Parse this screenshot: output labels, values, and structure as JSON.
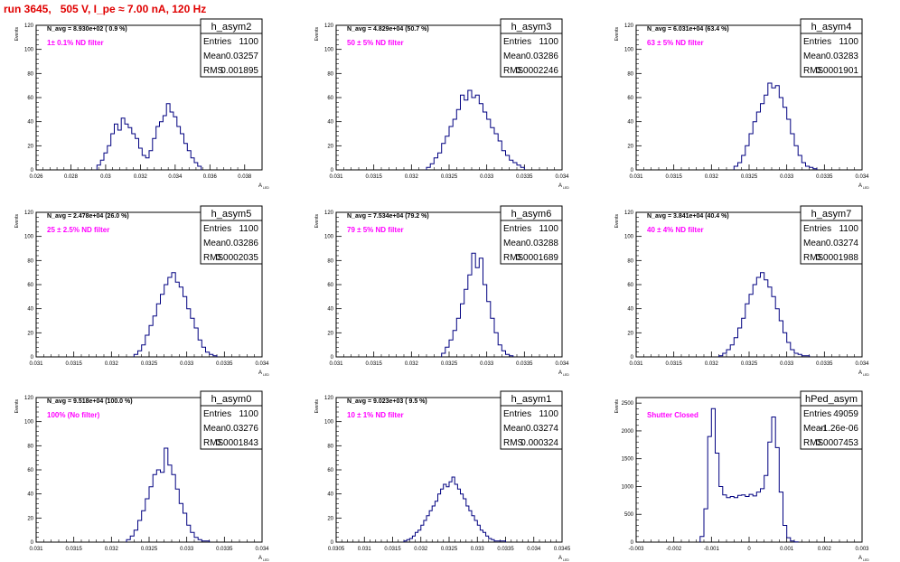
{
  "title": "run 3645,   505 V, I_pe ≈ 7.00 nA, 120 Hz",
  "colors": {
    "histogram": "#000080",
    "title": "#e00000",
    "annotation": "#ff00ff"
  },
  "chart_data": [
    {
      "type": "bar",
      "name": "h_asym2",
      "stats": {
        "entries": "1100",
        "mean": "0.03257",
        "rms": "0.001895"
      },
      "n_avg_text": "N_avg = 8.930e+02 ( 0.9 %)",
      "filter_text": "1± 0.1% ND filter",
      "ylabel": "Events",
      "xlabel": "A_LED",
      "xlim": [
        0.026,
        0.039
      ],
      "ylim": [
        0,
        120
      ],
      "xticks": [
        0.026,
        0.028,
        0.03,
        0.032,
        0.034,
        0.036,
        0.038
      ],
      "xtick_labels": [
        "0.026",
        "0.028",
        "0.03",
        "0.032",
        "0.034",
        "0.036",
        "0.038"
      ],
      "yticks": [
        0,
        20,
        40,
        60,
        80,
        100,
        120
      ],
      "bin_edges": [
        0.0295,
        0.0297,
        0.0299,
        0.0301,
        0.0303,
        0.0305,
        0.0307,
        0.0309,
        0.0311,
        0.0313,
        0.0315,
        0.0317,
        0.0319,
        0.0321,
        0.0323,
        0.0325,
        0.0327,
        0.0329,
        0.0331,
        0.0333,
        0.0335,
        0.0337,
        0.0339,
        0.0341,
        0.0343,
        0.0345,
        0.0347,
        0.0349,
        0.0351,
        0.0353,
        0.0355
      ],
      "values": [
        4,
        8,
        14,
        20,
        30,
        38,
        33,
        43,
        38,
        35,
        30,
        26,
        18,
        12,
        10,
        16,
        26,
        36,
        40,
        45,
        55,
        48,
        44,
        36,
        30,
        22,
        16,
        10,
        6,
        3
      ]
    },
    {
      "type": "bar",
      "name": "h_asym3",
      "stats": {
        "entries": "1100",
        "mean": "0.03286",
        "rms": "0.0002246"
      },
      "n_avg_text": "N_avg = 4.829e+04 (50.7 %)",
      "filter_text": "50 ± 5% ND filter",
      "ylabel": "Events",
      "xlabel": "A_LED",
      "xlim": [
        0.031,
        0.034
      ],
      "ylim": [
        0,
        120
      ],
      "xticks": [
        0.031,
        0.0315,
        0.032,
        0.0325,
        0.033,
        0.0335,
        0.034
      ],
      "xtick_labels": [
        "0.031",
        "0.0315",
        "0.032",
        "0.0325",
        "0.033",
        "0.0335",
        "0.034"
      ],
      "yticks": [
        0,
        20,
        40,
        60,
        80,
        100,
        120
      ],
      "bin_edges": [
        0.0322,
        0.03225,
        0.0323,
        0.03235,
        0.0324,
        0.03245,
        0.0325,
        0.03255,
        0.0326,
        0.03265,
        0.0327,
        0.03275,
        0.0328,
        0.03285,
        0.0329,
        0.03295,
        0.033,
        0.03305,
        0.0331,
        0.03315,
        0.0332,
        0.03325,
        0.0333,
        0.03335,
        0.0334,
        0.03345,
        0.0335
      ],
      "values": [
        2,
        5,
        10,
        14,
        22,
        28,
        36,
        42,
        50,
        62,
        58,
        66,
        60,
        62,
        55,
        48,
        42,
        35,
        30,
        24,
        16,
        12,
        8,
        6,
        4,
        2
      ]
    },
    {
      "type": "bar",
      "name": "h_asym4",
      "stats": {
        "entries": "1100",
        "mean": "0.03283",
        "rms": "0.0001901"
      },
      "n_avg_text": "N_avg = 6.031e+04 (63.4 %)",
      "filter_text": "63 ± 5% ND filter",
      "ylabel": "Events",
      "xlabel": "A_LED",
      "xlim": [
        0.031,
        0.034
      ],
      "ylim": [
        0,
        120
      ],
      "xticks": [
        0.031,
        0.0315,
        0.032,
        0.0325,
        0.033,
        0.0335,
        0.034
      ],
      "xtick_labels": [
        "0.031",
        "0.0315",
        "0.032",
        "0.0325",
        "0.033",
        "0.0335",
        "0.034"
      ],
      "yticks": [
        0,
        20,
        40,
        60,
        80,
        100,
        120
      ],
      "bin_edges": [
        0.0323,
        0.03235,
        0.0324,
        0.03245,
        0.0325,
        0.03255,
        0.0326,
        0.03265,
        0.0327,
        0.03275,
        0.0328,
        0.03285,
        0.0329,
        0.03295,
        0.033,
        0.03305,
        0.0331,
        0.03315,
        0.0332,
        0.03325,
        0.0333,
        0.03335,
        0.0334
      ],
      "values": [
        3,
        6,
        12,
        20,
        30,
        40,
        48,
        55,
        62,
        72,
        68,
        70,
        60,
        52,
        42,
        30,
        20,
        12,
        6,
        3,
        2,
        1
      ]
    },
    {
      "type": "bar",
      "name": "h_asym5",
      "stats": {
        "entries": "1100",
        "mean": "0.03286",
        "rms": "0.0002035"
      },
      "n_avg_text": "N_avg = 2.478e+04 (26.0 %)",
      "filter_text": "25 ± 2.5% ND filter",
      "ylabel": "Events",
      "xlabel": "A_LED",
      "xlim": [
        0.031,
        0.034
      ],
      "ylim": [
        0,
        120
      ],
      "xticks": [
        0.031,
        0.0315,
        0.032,
        0.0325,
        0.033,
        0.0335,
        0.034
      ],
      "xtick_labels": [
        "0.031",
        "0.0315",
        "0.032",
        "0.0325",
        "0.033",
        "0.0335",
        "0.034"
      ],
      "yticks": [
        0,
        20,
        40,
        60,
        80,
        100,
        120
      ],
      "bin_edges": [
        0.0323,
        0.03235,
        0.0324,
        0.03245,
        0.0325,
        0.03255,
        0.0326,
        0.03265,
        0.0327,
        0.03275,
        0.0328,
        0.03285,
        0.0329,
        0.03295,
        0.033,
        0.03305,
        0.0331,
        0.03315,
        0.0332,
        0.03325,
        0.0333,
        0.03335,
        0.0334
      ],
      "values": [
        2,
        5,
        10,
        18,
        26,
        34,
        44,
        52,
        60,
        66,
        70,
        62,
        58,
        50,
        40,
        32,
        24,
        14,
        8,
        4,
        2,
        1
      ]
    },
    {
      "type": "bar",
      "name": "h_asym6",
      "stats": {
        "entries": "1100",
        "mean": "0.03288",
        "rms": "0.0001689"
      },
      "n_avg_text": "N_avg = 7.534e+04 (79.2 %)",
      "filter_text": "79 ± 5% ND filter",
      "ylabel": "Events",
      "xlabel": "A_LED",
      "xlim": [
        0.031,
        0.034
      ],
      "ylim": [
        0,
        120
      ],
      "xticks": [
        0.031,
        0.0315,
        0.032,
        0.0325,
        0.033,
        0.0335,
        0.034
      ],
      "xtick_labels": [
        "0.031",
        "0.0315",
        "0.032",
        "0.0325",
        "0.033",
        "0.0335",
        "0.034"
      ],
      "yticks": [
        0,
        20,
        40,
        60,
        80,
        100,
        120
      ],
      "bin_edges": [
        0.0324,
        0.03245,
        0.0325,
        0.03255,
        0.0326,
        0.03265,
        0.0327,
        0.03275,
        0.0328,
        0.03285,
        0.0329,
        0.03295,
        0.033,
        0.03305,
        0.0331,
        0.03315,
        0.0332,
        0.03325,
        0.0333,
        0.03335
      ],
      "values": [
        3,
        8,
        14,
        22,
        32,
        44,
        56,
        68,
        86,
        74,
        82,
        60,
        46,
        32,
        20,
        10,
        5,
        2,
        1
      ]
    },
    {
      "type": "bar",
      "name": "h_asym7",
      "stats": {
        "entries": "1100",
        "mean": "0.03274",
        "rms": "0.0001988"
      },
      "n_avg_text": "N_avg = 3.841e+04 (40.4 %)",
      "filter_text": "40 ± 4% ND filter",
      "ylabel": "Events",
      "xlabel": "A_LED",
      "xlim": [
        0.031,
        0.034
      ],
      "ylim": [
        0,
        120
      ],
      "xticks": [
        0.031,
        0.0315,
        0.032,
        0.0325,
        0.033,
        0.0335,
        0.034
      ],
      "xtick_labels": [
        "0.031",
        "0.0315",
        "0.032",
        "0.0325",
        "0.033",
        "0.0335",
        "0.034"
      ],
      "yticks": [
        0,
        20,
        40,
        60,
        80,
        100,
        120
      ],
      "bin_edges": [
        0.0321,
        0.03215,
        0.0322,
        0.03225,
        0.0323,
        0.03235,
        0.0324,
        0.03245,
        0.0325,
        0.03255,
        0.0326,
        0.03265,
        0.0327,
        0.03275,
        0.0328,
        0.03285,
        0.0329,
        0.03295,
        0.033,
        0.03305,
        0.0331,
        0.03315,
        0.0332,
        0.03325,
        0.0333
      ],
      "values": [
        1,
        3,
        6,
        10,
        16,
        24,
        32,
        44,
        52,
        60,
        66,
        70,
        64,
        58,
        50,
        40,
        30,
        20,
        12,
        6,
        3,
        2,
        1,
        1
      ]
    },
    {
      "type": "bar",
      "name": "h_asym0",
      "stats": {
        "entries": "1100",
        "mean": "0.03276",
        "rms": "0.0001843"
      },
      "n_avg_text": "N_avg = 9.518e+04 (100.0 %)",
      "filter_text": "100% (No filter)",
      "ylabel": "Events",
      "xlabel": "A_LED",
      "xlim": [
        0.031,
        0.034
      ],
      "ylim": [
        0,
        120
      ],
      "xticks": [
        0.031,
        0.0315,
        0.032,
        0.0325,
        0.033,
        0.0335,
        0.034
      ],
      "xtick_labels": [
        "0.031",
        "0.0315",
        "0.032",
        "0.0325",
        "0.033",
        "0.0335",
        "0.034"
      ],
      "yticks": [
        0,
        20,
        40,
        60,
        80,
        100,
        120
      ],
      "bin_edges": [
        0.0322,
        0.03225,
        0.0323,
        0.03235,
        0.0324,
        0.03245,
        0.0325,
        0.03255,
        0.0326,
        0.03265,
        0.0327,
        0.03275,
        0.0328,
        0.03285,
        0.0329,
        0.03295,
        0.033,
        0.03305,
        0.0331,
        0.03315,
        0.0332,
        0.03325,
        0.0333
      ],
      "values": [
        2,
        5,
        10,
        18,
        26,
        36,
        46,
        56,
        60,
        58,
        78,
        64,
        56,
        44,
        32,
        24,
        14,
        8,
        4,
        2,
        1,
        1
      ]
    },
    {
      "type": "bar",
      "name": "h_asym1",
      "stats": {
        "entries": "1100",
        "mean": "0.03274",
        "rms": "0.000324"
      },
      "n_avg_text": "N_avg = 9.023e+03 ( 9.5 %)",
      "filter_text": "10 ± 1% ND filter",
      "ylabel": "Events",
      "xlabel": "A_LED",
      "xlim": [
        0.0305,
        0.0345
      ],
      "ylim": [
        0,
        120
      ],
      "xticks": [
        0.0305,
        0.031,
        0.0315,
        0.032,
        0.0325,
        0.033,
        0.0335,
        0.034,
        0.0345
      ],
      "xtick_labels": [
        "0.0305",
        "0.031",
        "0.0315",
        "0.032",
        "0.0325",
        "0.033",
        "0.0335",
        "0.034",
        "0.0345"
      ],
      "yticks": [
        0,
        20,
        40,
        60,
        80,
        100,
        120
      ],
      "bin_edges": [
        0.0317,
        0.03175,
        0.0318,
        0.03185,
        0.0319,
        0.03195,
        0.032,
        0.03205,
        0.0321,
        0.03215,
        0.0322,
        0.03225,
        0.0323,
        0.03235,
        0.0324,
        0.03245,
        0.0325,
        0.03255,
        0.0326,
        0.03265,
        0.0327,
        0.03275,
        0.0328,
        0.03285,
        0.0329,
        0.03295,
        0.033,
        0.03305,
        0.0331,
        0.03315,
        0.0332,
        0.03325,
        0.0333,
        0.03335,
        0.0334,
        0.03345,
        0.0335
      ],
      "values": [
        1,
        2,
        3,
        5,
        8,
        10,
        14,
        18,
        22,
        26,
        30,
        34,
        40,
        44,
        48,
        46,
        50,
        54,
        48,
        44,
        40,
        36,
        30,
        26,
        22,
        18,
        14,
        10,
        8,
        5,
        3,
        2,
        1,
        1,
        1,
        1
      ]
    },
    {
      "type": "bar",
      "name": "hPed_asym",
      "stats": {
        "entries": "49059",
        "mean": "-1.26e-06",
        "rms": "0.0007453"
      },
      "filter_text": "Shutter Closed",
      "ylabel": "Events",
      "xlabel": "A_LED",
      "xlim": [
        -0.003,
        0.003
      ],
      "ylim": [
        0,
        2600
      ],
      "xticks": [
        -0.003,
        -0.002,
        -0.001,
        0,
        0.001,
        0.002,
        0.003
      ],
      "xtick_labels": [
        "-0.003",
        "-0.002",
        "-0.001",
        "0",
        "0.001",
        "0.002",
        "0.003"
      ],
      "yticks": [
        0,
        500,
        1000,
        1500,
        2000,
        2500
      ],
      "bin_edges": [
        -0.0013,
        -0.0012,
        -0.0011,
        -0.001,
        -0.0009,
        -0.0008,
        -0.0007,
        -0.0006,
        -0.0005,
        -0.0004,
        -0.0003,
        -0.0002,
        -0.0001,
        0,
        0.0001,
        0.0002,
        0.0003,
        0.0004,
        0.0005,
        0.0006,
        0.0007,
        0.0008,
        0.0009,
        0.001,
        0.0011,
        0.0012,
        0.0013
      ],
      "values": [
        100,
        600,
        1900,
        2400,
        1600,
        1000,
        850,
        800,
        820,
        800,
        840,
        850,
        820,
        860,
        830,
        900,
        960,
        1200,
        1800,
        2250,
        1700,
        900,
        300,
        80,
        20,
        5
      ]
    }
  ]
}
